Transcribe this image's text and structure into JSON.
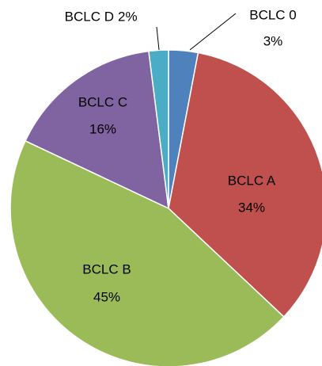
{
  "chart_data": {
    "type": "pie",
    "categories": [
      "BCLC 0",
      "BCLC A",
      "BCLC B",
      "BCLC C",
      "BCLC D"
    ],
    "values": [
      3,
      34,
      45,
      16,
      2
    ],
    "value_labels": [
      "3%",
      "34%",
      "45%",
      "16%",
      "2%"
    ],
    "colors": [
      "#4f81bd",
      "#c0504d",
      "#9bbb59",
      "#8064a2",
      "#4bacc6"
    ]
  }
}
